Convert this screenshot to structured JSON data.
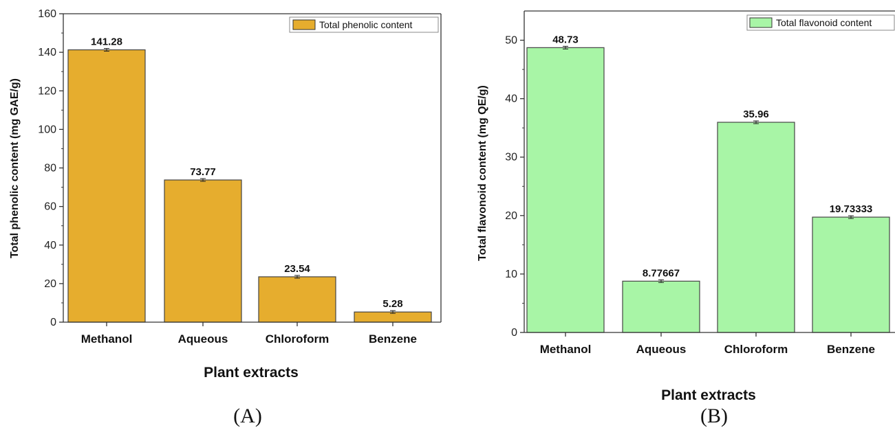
{
  "chart_data": [
    {
      "type": "bar",
      "panel": "(A)",
      "categories": [
        "Methanol",
        "Aqueous",
        "Chloroform",
        "Benzene"
      ],
      "values": [
        141.28,
        73.77,
        23.54,
        5.28
      ],
      "value_labels": [
        "141.28",
        "73.77",
        "23.54",
        "5.28"
      ],
      "xlabel": "Plant extracts",
      "ylabel": "Total phenolic  content (mg GAE/g)",
      "ylim": [
        0,
        160
      ],
      "yticks": [
        0,
        20,
        40,
        60,
        80,
        100,
        120,
        140,
        160
      ],
      "legend": "Total phenolic  content",
      "legend_position": "top-right",
      "bar_color": "#E6AD2E",
      "grid": false
    },
    {
      "type": "bar",
      "panel": "(B)",
      "categories": [
        "Methanol",
        "Aqueous",
        "Chloroform",
        "Benzene"
      ],
      "values": [
        48.73,
        8.77667,
        35.96,
        19.73333
      ],
      "value_labels": [
        "48.73",
        "8.77667",
        "35.96",
        "19.73333"
      ],
      "xlabel": "Plant extracts",
      "ylabel": "Total flavonoid content (mg QE/g)",
      "ylim": [
        0,
        55
      ],
      "yticks": [
        0,
        10,
        20,
        30,
        40,
        50
      ],
      "legend": "Total flavonoid content",
      "legend_position": "top-right",
      "bar_color": "#A8F5A6",
      "grid": false
    }
  ]
}
